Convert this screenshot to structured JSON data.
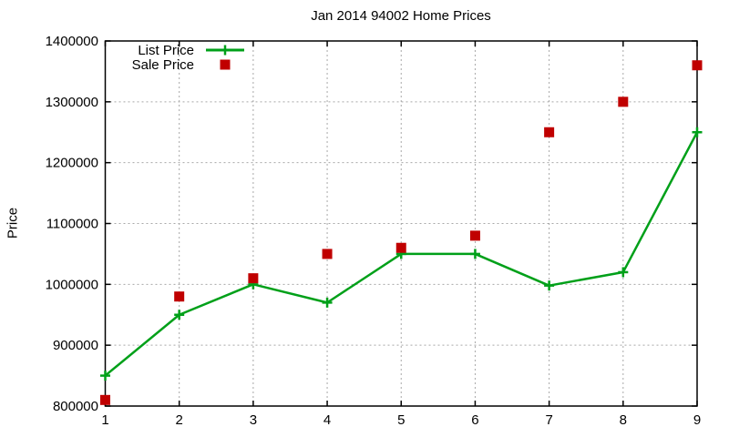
{
  "title": "Jan 2014 94002 Home Prices",
  "ylabel": "Price",
  "colors": {
    "list_price": "#00a019",
    "sale_price": "#c00000",
    "grid": "#a8a8a8",
    "axis": "#000000",
    "background": "#ffffff"
  },
  "legend": {
    "position": "top-left",
    "items": [
      "List Price",
      "Sale Price"
    ]
  },
  "chart_data": {
    "type": "line",
    "title": "Jan 2014 94002 Home Prices",
    "xlabel": "",
    "ylabel": "Price",
    "x": [
      1,
      2,
      3,
      4,
      5,
      6,
      7,
      8,
      9
    ],
    "series": [
      {
        "name": "List Price",
        "values": [
          850000,
          950000,
          1000000,
          970000,
          1050000,
          1050000,
          998000,
          1020000,
          1250000
        ],
        "color": "#00a019",
        "marker": "plus",
        "line": true
      },
      {
        "name": "Sale Price",
        "values": [
          810000,
          980000,
          1010000,
          1050000,
          1060000,
          1080000,
          1250000,
          1300000,
          1360000
        ],
        "color": "#c00000",
        "marker": "square",
        "line": false
      }
    ],
    "xlim": [
      1,
      9
    ],
    "ylim": [
      800000,
      1400000
    ],
    "xticks": [
      1,
      2,
      3,
      4,
      5,
      6,
      7,
      8,
      9
    ],
    "yticks": [
      800000,
      900000,
      1000000,
      1100000,
      1200000,
      1300000,
      1400000
    ],
    "grid": true,
    "grid_style": "dotted",
    "legend_position": "top-left"
  }
}
